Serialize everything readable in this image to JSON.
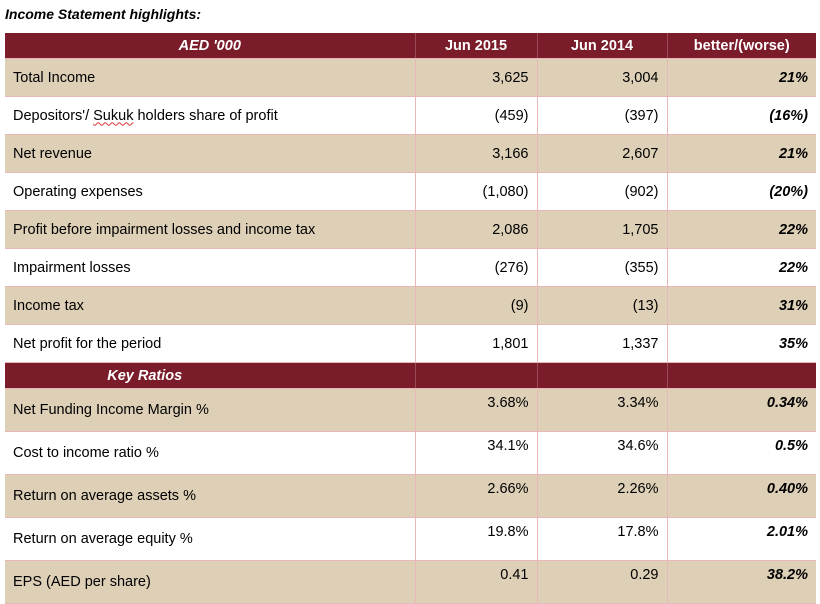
{
  "title": "Income Statement highlights:",
  "header": {
    "label": "AED '000",
    "col1": "Jun 2015",
    "col2": "Jun 2014",
    "col3": "better/(worse)"
  },
  "rows": [
    {
      "label": "Total Income",
      "v2015": "3,625",
      "v2014": "3,004",
      "change": "21%"
    },
    {
      "label_prefix": "Depositors'/ ",
      "label_sukuk": "Sukuk",
      "label_suffix": " holders share of profit",
      "v2015": "(459)",
      "v2014": "(397)",
      "change": "(16%)"
    },
    {
      "label": "Net revenue",
      "v2015": "3,166",
      "v2014": "2,607",
      "change": "21%"
    },
    {
      "label": "Operating expenses",
      "v2015": "(1,080)",
      "v2014": "(902)",
      "change": "(20%)"
    },
    {
      "label": "Profit before impairment losses and income tax",
      "v2015": "2,086",
      "v2014": "1,705",
      "change": "22%"
    },
    {
      "label": "Impairment losses",
      "v2015": "(276)",
      "v2014": "(355)",
      "change": "22%"
    },
    {
      "label": "Income tax",
      "v2015": "(9)",
      "v2014": "(13)",
      "change": "31%"
    },
    {
      "label": "Net profit for the period",
      "v2015": "1,801",
      "v2014": "1,337",
      "change": "35%"
    }
  ],
  "ratios_header": "Key Ratios",
  "ratios": [
    {
      "label": "Net Funding Income Margin %",
      "v2015": "3.68%",
      "v2014": "3.34%",
      "change": "0.34%"
    },
    {
      "label": "Cost to income ratio %",
      "v2015": "34.1%",
      "v2014": "34.6%",
      "change": "0.5%"
    },
    {
      "label": "Return on average assets %",
      "v2015": "2.66%",
      "v2014": "2.26%",
      "change": "0.40%"
    },
    {
      "label": "Return on average equity %",
      "v2015": "19.8%",
      "v2014": "17.8%",
      "change": "2.01%"
    },
    {
      "label": "EPS (AED per share)",
      "v2015": "0.41",
      "v2014": "0.29",
      "change": "38.2%"
    }
  ],
  "colors": {
    "header_bg": "#7b1c2a",
    "shade_bg": "#ddd0b7",
    "grid": "#e8b8b8"
  }
}
